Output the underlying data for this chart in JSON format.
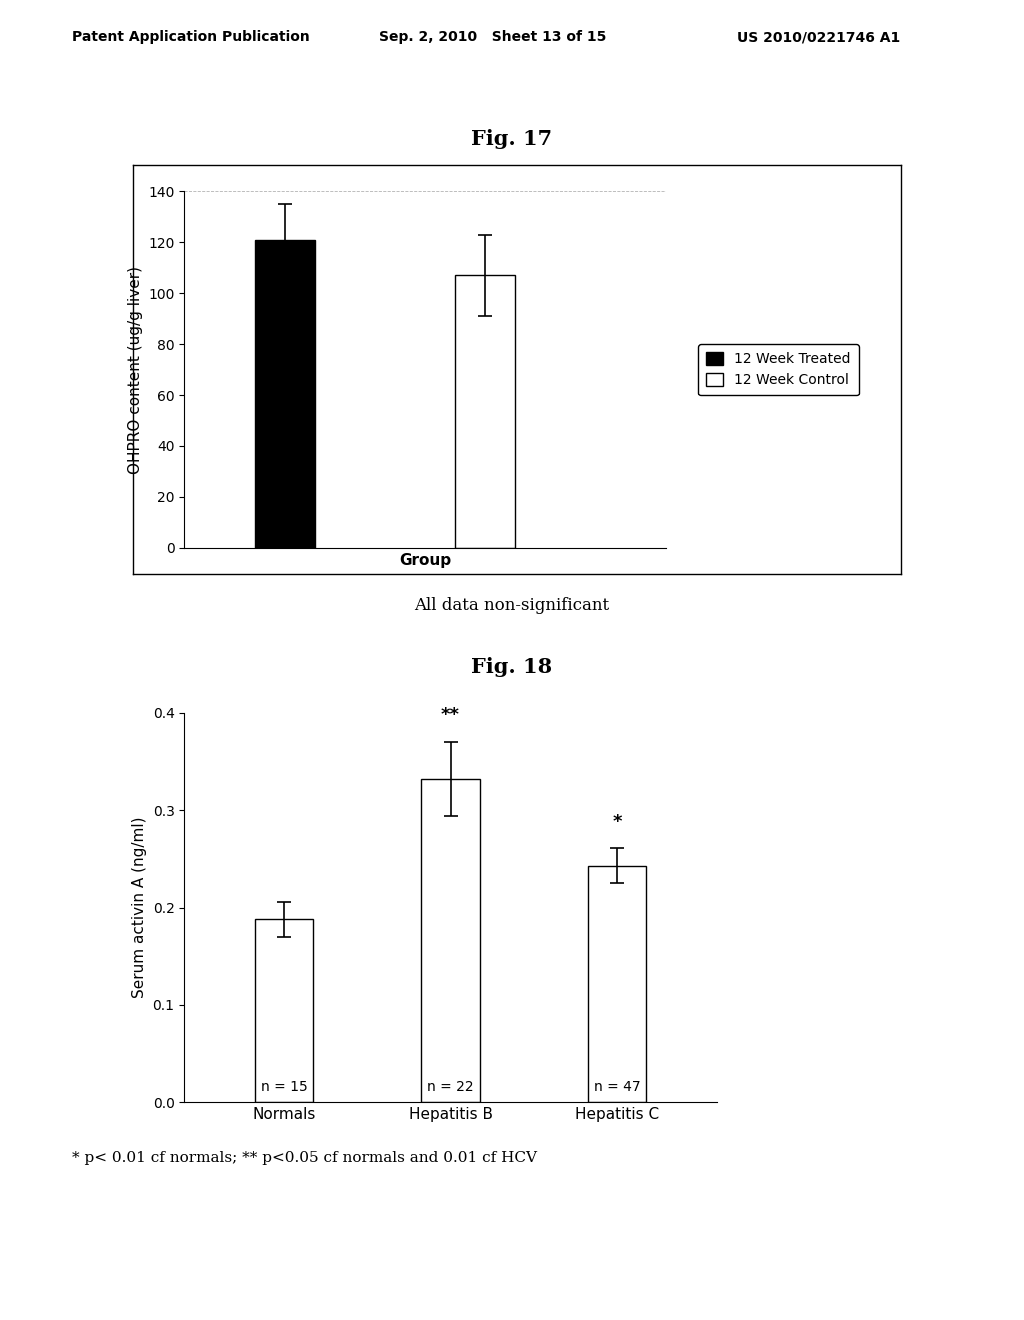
{
  "header_left": "Patent Application Publication",
  "header_mid": "Sep. 2, 2010   Sheet 13 of 15",
  "header_right": "US 2010/0221746 A1",
  "fig17": {
    "title": "Fig. 17",
    "bars": [
      {
        "label": "12 Week Treated",
        "value": 121,
        "error": 14,
        "color": "#000000"
      },
      {
        "label": "12 Week Control",
        "value": 107,
        "error": 16,
        "color": "#ffffff"
      }
    ],
    "ylabel": "OHPRO content (ug/g liver)",
    "xlabel": "Group",
    "ylim": [
      0,
      140
    ],
    "yticks": [
      0,
      20,
      40,
      60,
      80,
      100,
      120,
      140
    ],
    "footnote": "All data non-significant",
    "legend_labels": [
      "12 Week Treated",
      "12 Week Control"
    ],
    "legend_colors": [
      "#000000",
      "#ffffff"
    ]
  },
  "fig18": {
    "title": "Fig. 18",
    "bars": [
      {
        "label": "Normals",
        "value": 0.188,
        "error": 0.018,
        "color": "#ffffff",
        "n": "n = 15",
        "sig": ""
      },
      {
        "label": "Hepatitis B",
        "value": 0.332,
        "error": 0.038,
        "color": "#ffffff",
        "n": "n = 22",
        "sig": "**"
      },
      {
        "label": "Hepatitis C",
        "value": 0.243,
        "error": 0.018,
        "color": "#ffffff",
        "n": "n = 47",
        "sig": "*"
      }
    ],
    "ylabel": "Serum activin A (ng/ml)",
    "xlabel": "",
    "ylim": [
      0.0,
      0.4
    ],
    "yticks": [
      0.0,
      0.1,
      0.2,
      0.3,
      0.4
    ],
    "footnote": "* p< 0.01 cf normals; ** p<0.05 cf normals and 0.01 cf HCV"
  }
}
